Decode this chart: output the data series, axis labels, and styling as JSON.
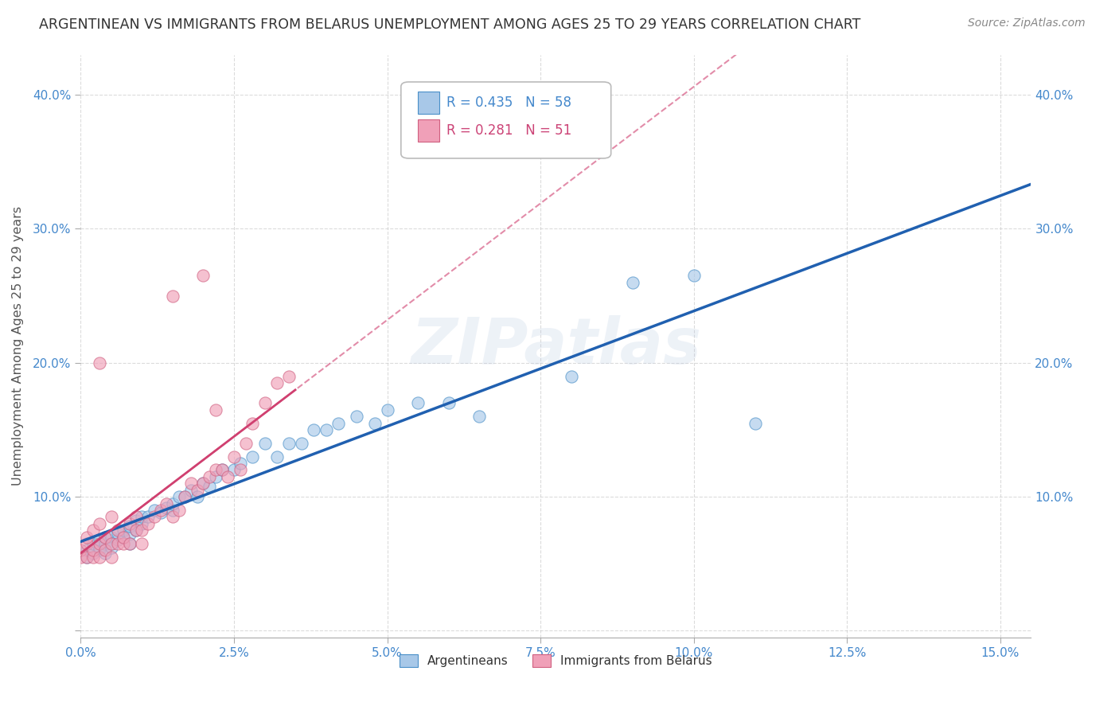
{
  "title": "ARGENTINEAN VS IMMIGRANTS FROM BELARUS UNEMPLOYMENT AMONG AGES 25 TO 29 YEARS CORRELATION CHART",
  "source": "Source: ZipAtlas.com",
  "ylabel": "Unemployment Among Ages 25 to 29 years",
  "xlim": [
    0.0,
    0.155
  ],
  "ylim": [
    -0.005,
    0.43
  ],
  "xtick_vals": [
    0.0,
    0.025,
    0.05,
    0.075,
    0.1,
    0.125,
    0.15
  ],
  "xtick_labels": [
    "0.0%",
    "2.5%",
    "5.0%",
    "7.5%",
    "10.0%",
    "12.5%",
    "15.0%"
  ],
  "ytick_vals": [
    0.0,
    0.1,
    0.2,
    0.3,
    0.4
  ],
  "ytick_labels": [
    "",
    "10.0%",
    "20.0%",
    "30.0%",
    "40.0%"
  ],
  "blue_color": "#a8c8e8",
  "blue_edge_color": "#4a90c8",
  "blue_line_color": "#2060b0",
  "pink_color": "#f0a0b8",
  "pink_edge_color": "#d06080",
  "pink_line_color": "#d04070",
  "watermark": "ZIPatlas",
  "bg_color": "#ffffff",
  "grid_color": "#cccccc",
  "legend_r_blue": "R = 0.435",
  "legend_n_blue": "N = 58",
  "legend_r_pink": "R = 0.281",
  "legend_n_pink": "N = 51",
  "blue_x": [
    0.001,
    0.001,
    0.002,
    0.002,
    0.003,
    0.003,
    0.003,
    0.004,
    0.004,
    0.004,
    0.005,
    0.005,
    0.005,
    0.006,
    0.006,
    0.007,
    0.007,
    0.008,
    0.008,
    0.008,
    0.009,
    0.009,
    0.01,
    0.01,
    0.011,
    0.012,
    0.013,
    0.014,
    0.015,
    0.015,
    0.016,
    0.017,
    0.018,
    0.019,
    0.02,
    0.021,
    0.022,
    0.023,
    0.025,
    0.026,
    0.028,
    0.03,
    0.032,
    0.034,
    0.036,
    0.038,
    0.04,
    0.042,
    0.045,
    0.048,
    0.05,
    0.055,
    0.06,
    0.065,
    0.08,
    0.09,
    0.1,
    0.11
  ],
  "blue_y": [
    0.055,
    0.06,
    0.058,
    0.065,
    0.06,
    0.062,
    0.068,
    0.065,
    0.07,
    0.058,
    0.065,
    0.07,
    0.062,
    0.068,
    0.073,
    0.07,
    0.075,
    0.072,
    0.078,
    0.065,
    0.075,
    0.082,
    0.08,
    0.085,
    0.085,
    0.09,
    0.088,
    0.092,
    0.09,
    0.095,
    0.1,
    0.1,
    0.105,
    0.1,
    0.11,
    0.108,
    0.115,
    0.12,
    0.12,
    0.125,
    0.13,
    0.14,
    0.13,
    0.14,
    0.14,
    0.15,
    0.15,
    0.155,
    0.16,
    0.155,
    0.165,
    0.17,
    0.17,
    0.16,
    0.19,
    0.26,
    0.265,
    0.155
  ],
  "pink_x": [
    0.0,
    0.0,
    0.001,
    0.001,
    0.001,
    0.002,
    0.002,
    0.002,
    0.003,
    0.003,
    0.003,
    0.004,
    0.004,
    0.005,
    0.005,
    0.005,
    0.006,
    0.006,
    0.007,
    0.007,
    0.008,
    0.008,
    0.009,
    0.009,
    0.01,
    0.01,
    0.011,
    0.012,
    0.013,
    0.014,
    0.015,
    0.016,
    0.017,
    0.018,
    0.019,
    0.02,
    0.021,
    0.022,
    0.023,
    0.024,
    0.025,
    0.026,
    0.027,
    0.028,
    0.03,
    0.032,
    0.034,
    0.02,
    0.015,
    0.003,
    0.022
  ],
  "pink_y": [
    0.055,
    0.06,
    0.055,
    0.065,
    0.07,
    0.055,
    0.06,
    0.075,
    0.055,
    0.065,
    0.08,
    0.06,
    0.07,
    0.055,
    0.065,
    0.085,
    0.065,
    0.075,
    0.065,
    0.07,
    0.065,
    0.08,
    0.075,
    0.085,
    0.065,
    0.075,
    0.08,
    0.085,
    0.09,
    0.095,
    0.085,
    0.09,
    0.1,
    0.11,
    0.105,
    0.11,
    0.115,
    0.12,
    0.12,
    0.115,
    0.13,
    0.12,
    0.14,
    0.155,
    0.17,
    0.185,
    0.19,
    0.265,
    0.25,
    0.2,
    0.165
  ]
}
